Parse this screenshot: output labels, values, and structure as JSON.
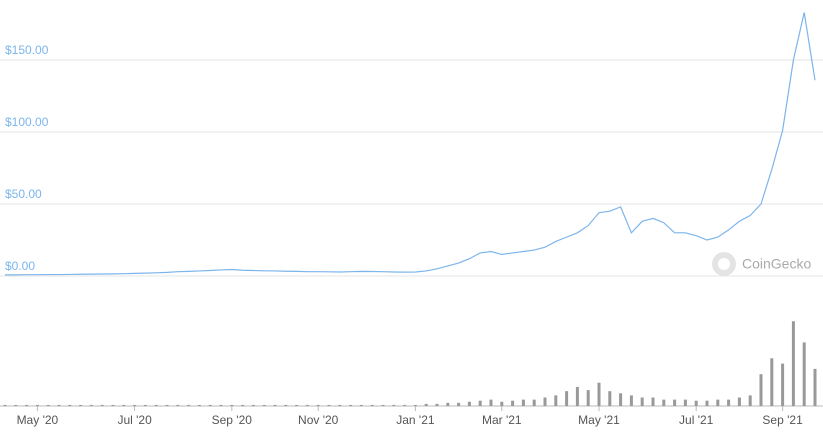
{
  "chart_data": {
    "type": "line",
    "categories": [
      null,
      null,
      null,
      "May '20",
      null,
      null,
      null,
      null,
      null,
      null,
      null,
      null,
      "Jul '20",
      null,
      null,
      null,
      null,
      null,
      null,
      null,
      null,
      "Sep '20",
      null,
      null,
      null,
      null,
      null,
      null,
      null,
      "Nov '20",
      null,
      null,
      null,
      null,
      null,
      null,
      null,
      null,
      "Jan '21",
      null,
      null,
      null,
      null,
      null,
      null,
      null,
      "Mar '21",
      null,
      null,
      null,
      null,
      null,
      null,
      null,
      null,
      "May '21",
      null,
      null,
      null,
      null,
      null,
      null,
      null,
      null,
      "Jul '21",
      null,
      null,
      null,
      null,
      null,
      null,
      null,
      "Sep '21",
      null,
      null,
      null
    ],
    "values": [
      0.8,
      0.8,
      0.9,
      0.9,
      1.0,
      1.0,
      1.1,
      1.2,
      1.3,
      1.4,
      1.5,
      1.6,
      1.8,
      2.0,
      2.2,
      2.5,
      3.0,
      3.2,
      3.5,
      3.8,
      4.2,
      4.5,
      4.0,
      3.8,
      3.6,
      3.5,
      3.3,
      3.2,
      3.0,
      3.0,
      2.9,
      2.8,
      3.0,
      3.2,
      3.1,
      3.0,
      2.8,
      2.7,
      2.8,
      3.5,
      5.0,
      7.0,
      9.0,
      12,
      16,
      17,
      15,
      16,
      17,
      18,
      20,
      24,
      27,
      30,
      35,
      44,
      45,
      48,
      30,
      38,
      40,
      37,
      30,
      30,
      28,
      25,
      27,
      32,
      38,
      42,
      50,
      74,
      101,
      150,
      183,
      136
    ],
    "color": "#7cb5ec",
    "ylim": [
      0,
      190
    ],
    "yticks": [
      {
        "value": 0,
        "label": "$0.00"
      },
      {
        "value": 50,
        "label": "$50.00"
      },
      {
        "value": 100,
        "label": "$100.00"
      },
      {
        "value": 150,
        "label": "$150.00"
      }
    ],
    "grid": true,
    "volume_values": [
      1,
      1,
      1,
      1,
      1,
      1,
      1,
      1,
      1,
      1,
      1,
      1,
      1,
      1,
      1,
      1,
      1,
      1,
      1,
      1,
      1,
      1,
      1,
      1,
      1,
      1,
      1,
      1,
      1,
      1,
      1,
      1,
      1,
      1,
      1,
      1,
      1,
      1,
      1,
      2,
      2,
      3,
      3,
      4,
      5,
      6,
      4,
      5,
      6,
      6,
      8,
      10,
      14,
      18,
      15,
      22,
      14,
      12,
      10,
      8,
      8,
      6,
      6,
      6,
      5,
      5,
      6,
      6,
      8,
      10,
      30,
      45,
      40,
      80,
      60,
      35
    ],
    "volume_color": "#999999",
    "y2lim": [
      0,
      100
    ],
    "watermark": "CoinGecko"
  }
}
